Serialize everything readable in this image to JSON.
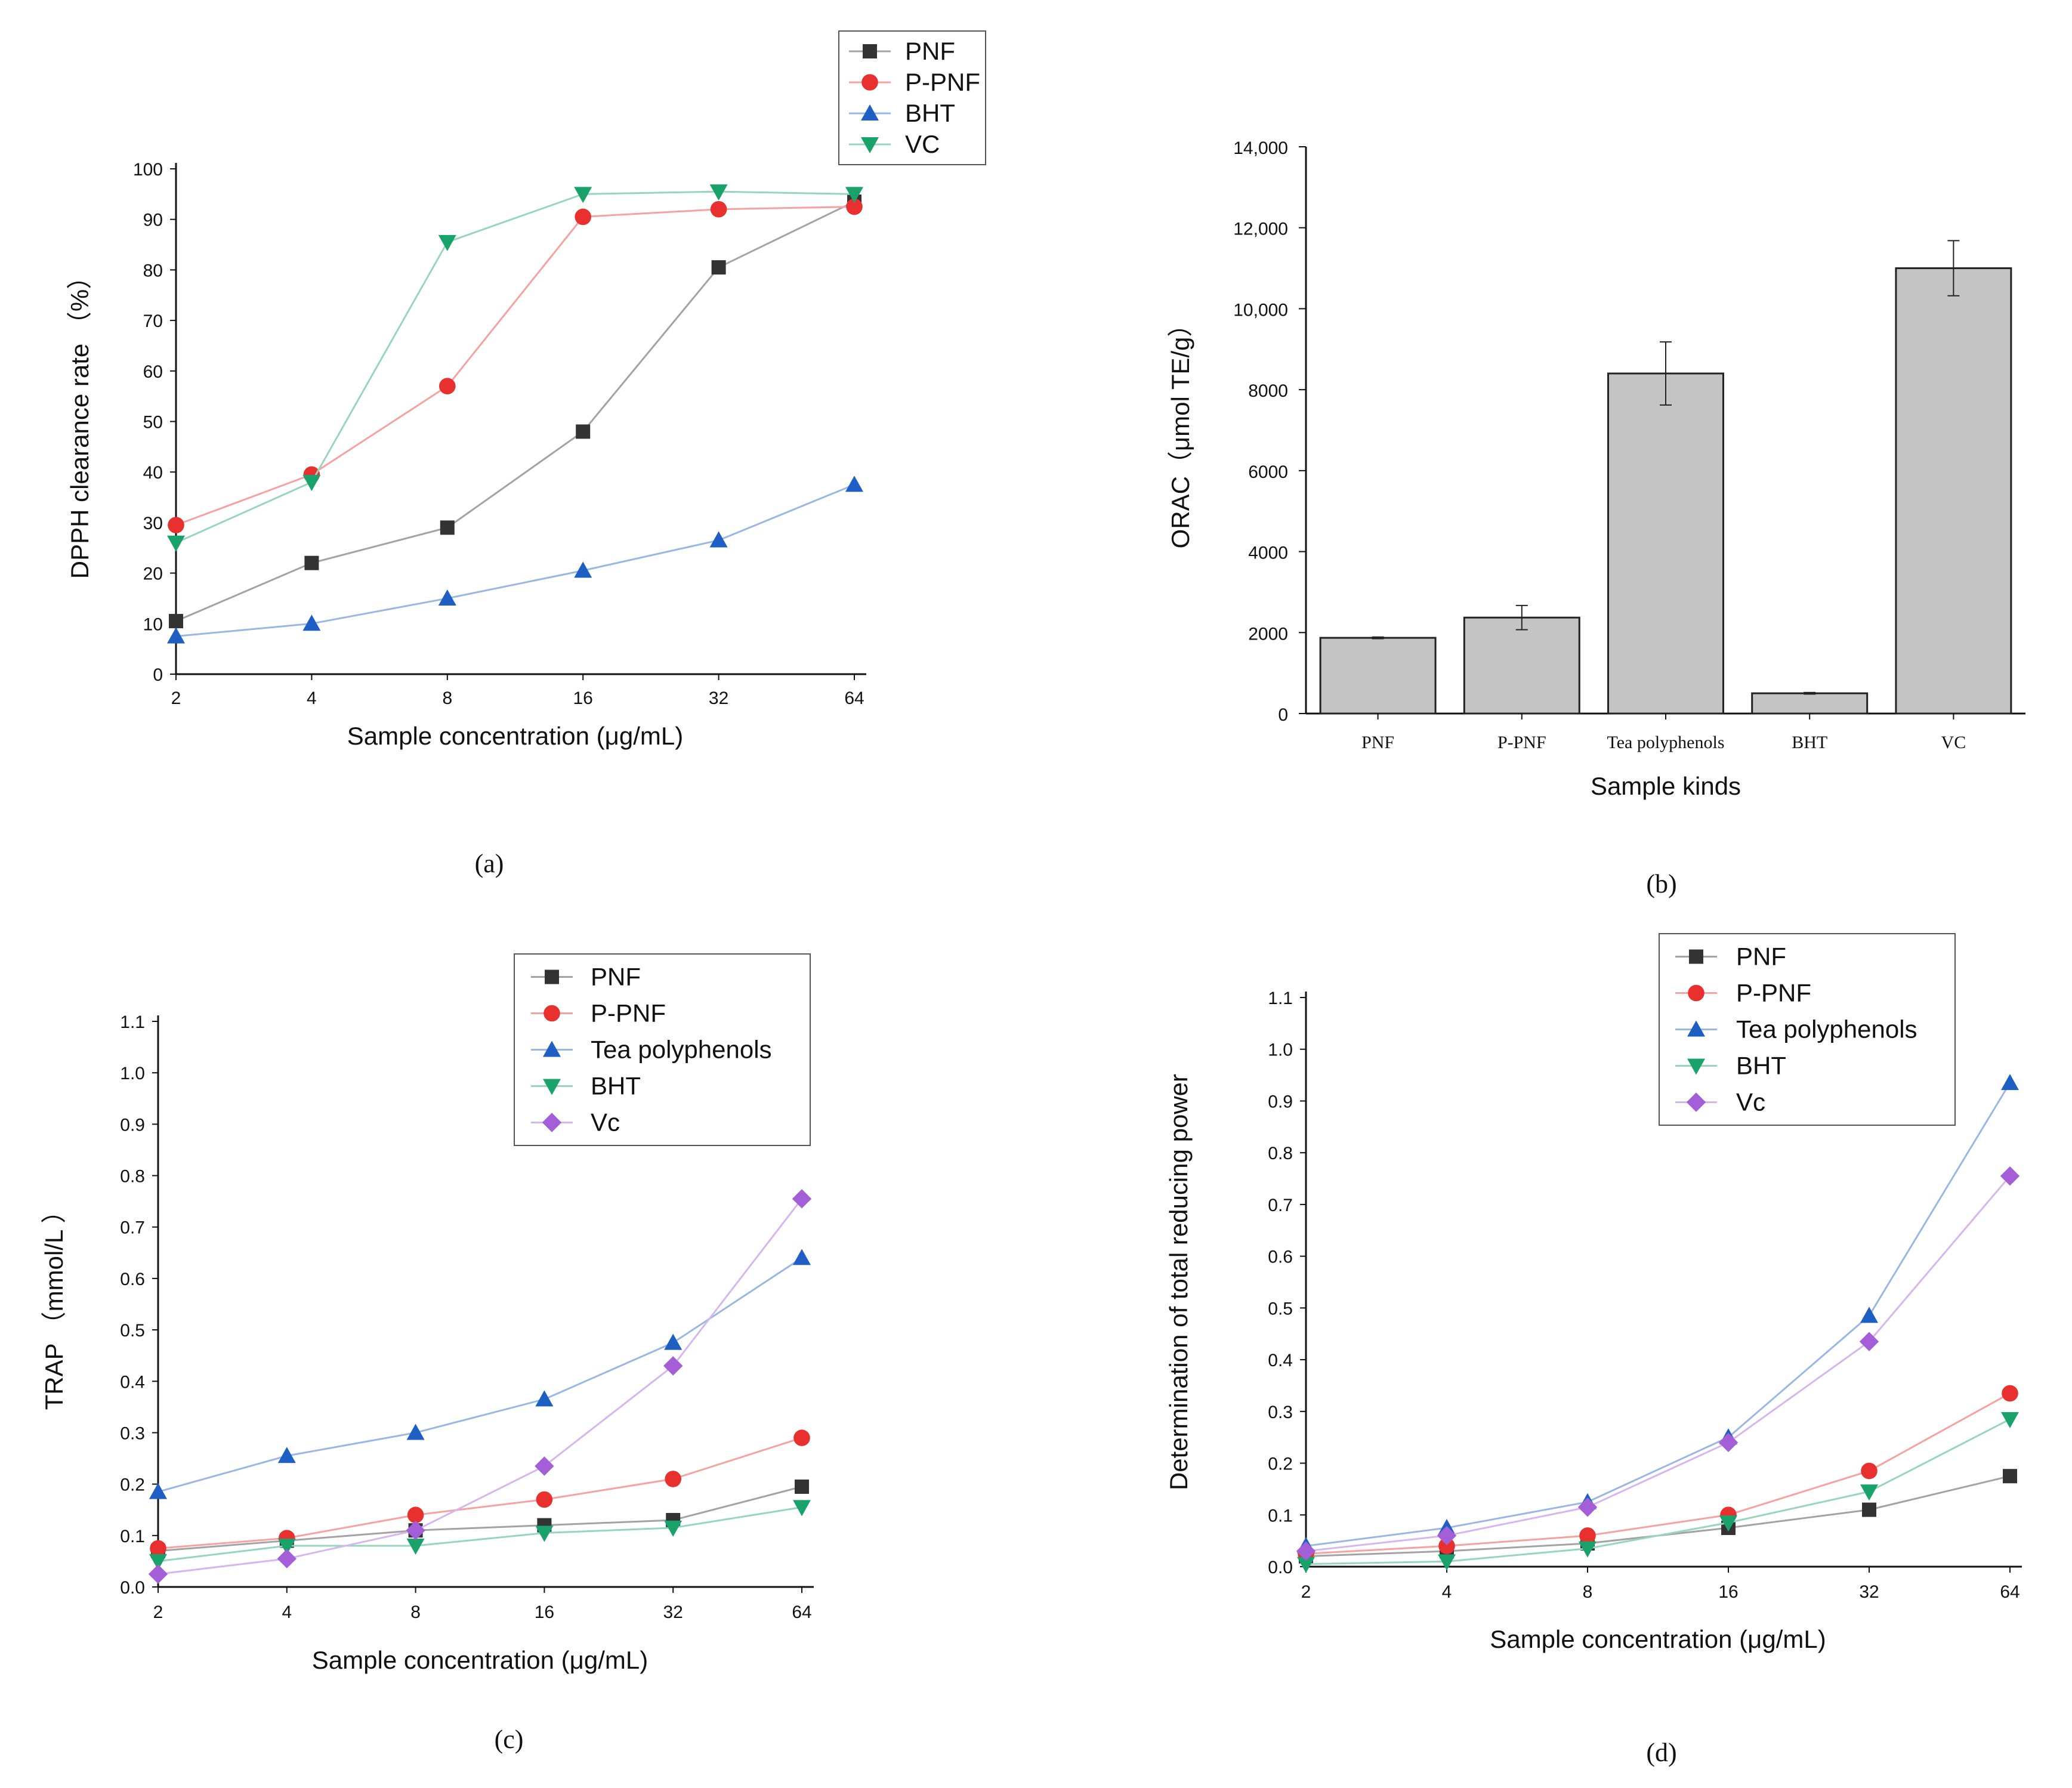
{
  "colors": {
    "PNF": "#333333",
    "P-PNF": "#e8312f",
    "BHT_a": "#1f5fc4",
    "VC_a": "#19a36b",
    "Tea polyphenols": "#1f5fc4",
    "BHT_cd": "#19a36b",
    "Vc": "#a45fd8",
    "bar": "#c4c4c4"
  },
  "chart_data": [
    {
      "id": "a",
      "panel_label": "(a)",
      "type": "line",
      "xlabel": "Sample concentration (μg/mL)",
      "ylabel": "DPPH clearance rate （%）",
      "x": [
        "2",
        "4",
        "8",
        "16",
        "32",
        "64"
      ],
      "yticks": [
        "0",
        "10",
        "20",
        "30",
        "40",
        "50",
        "60",
        "70",
        "80",
        "90",
        "100"
      ],
      "ylim": [
        0,
        100
      ],
      "legend_position": "top-right",
      "series": [
        {
          "name": "PNF",
          "marker": "square",
          "color_key": "PNF",
          "values": [
            10.5,
            22,
            29,
            48,
            80.5,
            93.5
          ]
        },
        {
          "name": "P-PNF",
          "marker": "circle",
          "color_key": "P-PNF",
          "values": [
            29.5,
            39.5,
            57,
            90.5,
            92,
            92.5
          ]
        },
        {
          "name": "BHT",
          "marker": "triangle-up",
          "color_key": "BHT_a",
          "values": [
            7.5,
            10,
            15,
            20.5,
            26.5,
            37.5
          ]
        },
        {
          "name": "VC",
          "marker": "triangle-down",
          "color_key": "VC_a",
          "values": [
            26,
            38,
            85.5,
            95,
            95.5,
            95
          ]
        }
      ]
    },
    {
      "id": "b",
      "panel_label": "(b)",
      "type": "bar",
      "xlabel": "Sample kinds",
      "ylabel": "ORAC（μmol TE/g）",
      "categories": [
        "PNF",
        "P-PNF",
        "Tea polyphenols",
        "BHT",
        "VC"
      ],
      "values": [
        1870,
        2370,
        8400,
        500,
        11000
      ],
      "errors": [
        20,
        300,
        780,
        20,
        680
      ],
      "yticks": [
        "0",
        "2000",
        "4000",
        "6000",
        "8000",
        "10,000",
        "12,000",
        "14,000"
      ],
      "ylim": [
        0,
        14000
      ]
    },
    {
      "id": "c",
      "panel_label": "(c)",
      "type": "line",
      "xlabel": "Sample concentration (μg/mL)",
      "ylabel": "TRAP （mmol/L ）",
      "x": [
        "2",
        "4",
        "8",
        "16",
        "32",
        "64"
      ],
      "yticks": [
        "0.0",
        "0.1",
        "0.2",
        "0.3",
        "0.4",
        "0.5",
        "0.6",
        "0.7",
        "0.8",
        "0.9",
        "1.0",
        "1.1"
      ],
      "ylim": [
        0,
        1.1
      ],
      "legend_position": "top-right",
      "series": [
        {
          "name": "PNF",
          "marker": "square",
          "color_key": "PNF",
          "values": [
            0.07,
            0.09,
            0.11,
            0.12,
            0.13,
            0.195
          ]
        },
        {
          "name": "P-PNF",
          "marker": "circle",
          "color_key": "P-PNF",
          "values": [
            0.075,
            0.095,
            0.14,
            0.17,
            0.21,
            0.29
          ]
        },
        {
          "name": "Tea polyphenols",
          "marker": "triangle-up",
          "color_key": "Tea polyphenols",
          "values": [
            0.185,
            0.255,
            0.3,
            0.365,
            0.475,
            0.64
          ]
        },
        {
          "name": "BHT",
          "marker": "triangle-down",
          "color_key": "BHT_cd",
          "values": [
            0.05,
            0.08,
            0.08,
            0.105,
            0.115,
            0.155
          ]
        },
        {
          "name": "Vc",
          "marker": "diamond",
          "color_key": "Vc",
          "values": [
            0.025,
            0.055,
            0.11,
            0.235,
            0.43,
            0.755
          ]
        }
      ]
    },
    {
      "id": "d",
      "panel_label": "(d)",
      "type": "line",
      "xlabel": "Sample concentration (μg/mL)",
      "ylabel": "Determination of total reducing power",
      "x": [
        "2",
        "4",
        "8",
        "16",
        "32",
        "64"
      ],
      "yticks": [
        "0.0",
        "0.1",
        "0.2",
        "0.3",
        "0.4",
        "0.5",
        "0.6",
        "0.7",
        "0.8",
        "0.9",
        "1.0",
        "1.1"
      ],
      "ylim": [
        0,
        1.1
      ],
      "legend_position": "top-right",
      "series": [
        {
          "name": "PNF",
          "marker": "square",
          "color_key": "PNF",
          "values": [
            0.02,
            0.03,
            0.045,
            0.075,
            0.11,
            0.175
          ]
        },
        {
          "name": "P-PNF",
          "marker": "circle",
          "color_key": "P-PNF",
          "values": [
            0.025,
            0.04,
            0.06,
            0.1,
            0.185,
            0.335
          ]
        },
        {
          "name": "Tea polyphenols",
          "marker": "triangle-up",
          "color_key": "Tea polyphenols",
          "values": [
            0.04,
            0.075,
            0.125,
            0.25,
            0.485,
            0.935
          ]
        },
        {
          "name": "BHT",
          "marker": "triangle-down",
          "color_key": "BHT_cd",
          "values": [
            0.005,
            0.01,
            0.035,
            0.085,
            0.145,
            0.285
          ]
        },
        {
          "name": "Vc",
          "marker": "diamond",
          "color_key": "Vc",
          "values": [
            0.03,
            0.06,
            0.115,
            0.24,
            0.435,
            0.755
          ]
        }
      ]
    }
  ]
}
